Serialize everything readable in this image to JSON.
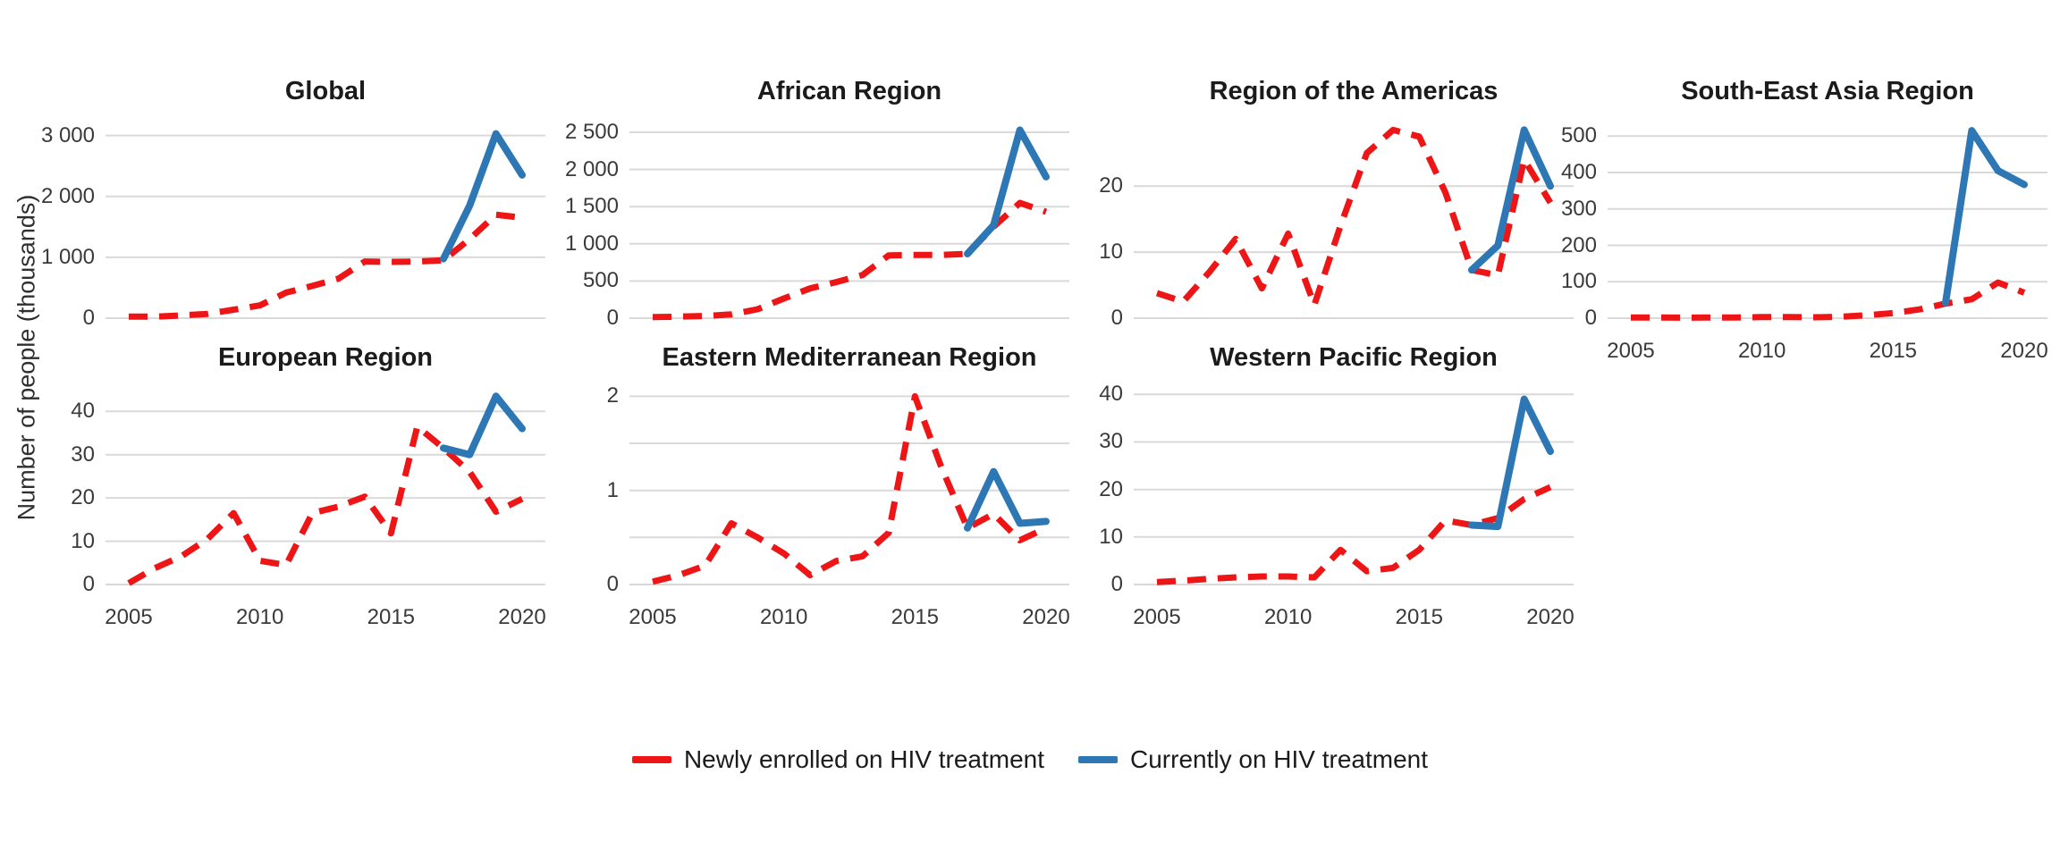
{
  "y_axis_label": "Number of people (thousands)",
  "colors": {
    "newly_enrolled": "#ed1515",
    "currently_on": "#2e77b5",
    "gridline": "#d9d9d9",
    "title_text": "#1b1b1b",
    "tick_text": "#3a3a3a",
    "background": "#ffffff"
  },
  "legend": {
    "items": [
      {
        "label": "Newly enrolled on HIV treatment",
        "series_key": "newly_enrolled",
        "line_style": "dashed"
      },
      {
        "label": "Currently on HIV treatment",
        "series_key": "currently_on",
        "line_style": "solid"
      }
    ]
  },
  "x_ticks": [
    {
      "value": 2005,
      "label": "2005"
    },
    {
      "value": 2010,
      "label": "2010"
    },
    {
      "value": 2015,
      "label": "2015"
    },
    {
      "value": 2020,
      "label": "2020"
    }
  ],
  "chart_data": [
    {
      "type": "line",
      "title": "Global",
      "slug": "global",
      "grid_position": {
        "row": 1,
        "col": 1
      },
      "show_x_axis": false,
      "x_domain": [
        2005,
        2020
      ],
      "y_max": 3200,
      "grid": "horizontal-only",
      "y_ticks": [
        {
          "value": 0,
          "label": "0"
        },
        {
          "value": 1000,
          "label": "1 000"
        },
        {
          "value": 2000,
          "label": "2 000"
        },
        {
          "value": 3000,
          "label": "3 000"
        }
      ],
      "series": {
        "newly_enrolled": {
          "name": "Newly enrolled on HIV treatment",
          "x_start": 2005,
          "values": [
            25,
            25,
            45,
            70,
            140,
            210,
            420,
            530,
            650,
            930,
            925,
            930,
            950,
            1300,
            1700,
            1650
          ]
        },
        "currently_on": {
          "name": "Currently on HIV treatment",
          "x_start": 2017,
          "values": [
            975,
            1850,
            3030,
            2350
          ]
        }
      }
    },
    {
      "type": "line",
      "title": "African Region",
      "slug": "african-region",
      "grid_position": {
        "row": 1,
        "col": 2
      },
      "show_x_axis": false,
      "x_domain": [
        2005,
        2020
      ],
      "y_max": 2620,
      "grid": "horizontal-only",
      "y_ticks": [
        {
          "value": 0,
          "label": "0"
        },
        {
          "value": 500,
          "label": "500"
        },
        {
          "value": 1000,
          "label": "1 000"
        },
        {
          "value": 1500,
          "label": "1 500"
        },
        {
          "value": 2000,
          "label": "2 000"
        },
        {
          "value": 2500,
          "label": "2 500"
        }
      ],
      "series": {
        "newly_enrolled": {
          "name": "Newly enrolled on HIV treatment",
          "x_start": 2005,
          "values": [
            15,
            20,
            30,
            50,
            120,
            265,
            400,
            485,
            580,
            845,
            850,
            850,
            865,
            1230,
            1550,
            1430
          ]
        },
        "currently_on": {
          "name": "Currently on HIV treatment",
          "x_start": 2017,
          "values": [
            865,
            1250,
            2530,
            1900
          ]
        }
      }
    },
    {
      "type": "line",
      "title": "Region of the Americas",
      "slug": "region-of-the-americas",
      "grid_position": {
        "row": 1,
        "col": 3
      },
      "show_x_axis": false,
      "x_domain": [
        2005,
        2020
      ],
      "y_max": 29.5,
      "grid": "horizontal-only",
      "y_ticks": [
        {
          "value": 0,
          "label": "0"
        },
        {
          "value": 10,
          "label": "10"
        },
        {
          "value": 20,
          "label": "20"
        }
      ],
      "series": {
        "newly_enrolled": {
          "name": "Newly enrolled on HIV treatment",
          "x_start": 2005,
          "values": [
            3.8,
            2.5,
            7,
            12,
            4.5,
            12.8,
            2,
            14,
            25,
            28.5,
            27.5,
            19,
            7.3,
            6.5,
            24,
            17.5
          ]
        },
        "currently_on": {
          "name": "Currently on HIV treatment",
          "x_start": 2017,
          "values": [
            7.3,
            11,
            28.5,
            20
          ]
        }
      }
    },
    {
      "type": "line",
      "title": "South-East Asia Region",
      "slug": "south-east-asia-region",
      "grid_position": {
        "row": 1,
        "col": 4
      },
      "show_x_axis": true,
      "x_domain": [
        2005,
        2020
      ],
      "y_max": 535,
      "grid": "horizontal-only",
      "y_ticks": [
        {
          "value": 0,
          "label": "0"
        },
        {
          "value": 100,
          "label": "100"
        },
        {
          "value": 200,
          "label": "200"
        },
        {
          "value": 300,
          "label": "300"
        },
        {
          "value": 400,
          "label": "400"
        },
        {
          "value": 500,
          "label": "500"
        }
      ],
      "series": {
        "newly_enrolled": {
          "name": "Newly enrolled on HIV treatment",
          "x_start": 2005,
          "values": [
            2,
            2,
            1.5,
            2,
            2,
            3,
            3,
            2.5,
            4,
            8,
            14,
            24,
            40,
            52,
            98,
            70
          ]
        },
        "currently_on": {
          "name": "Currently on HIV treatment",
          "x_start": 2017,
          "values": [
            42,
            515,
            405,
            367
          ]
        }
      }
    },
    {
      "type": "line",
      "title": "European Region",
      "slug": "european-region",
      "grid_position": {
        "row": 2,
        "col": 1
      },
      "show_x_axis": true,
      "x_domain": [
        2005,
        2020
      ],
      "y_max": 45,
      "grid": "horizontal-only",
      "y_ticks": [
        {
          "value": 0,
          "label": "0"
        },
        {
          "value": 10,
          "label": "10"
        },
        {
          "value": 20,
          "label": "20"
        },
        {
          "value": 30,
          "label": "30"
        },
        {
          "value": 40,
          "label": "40"
        }
      ],
      "series": {
        "newly_enrolled": {
          "name": "Newly enrolled on HIV treatment",
          "x_start": 2005,
          "values": [
            0.3,
            3.8,
            6.5,
            10.5,
            16.5,
            5.5,
            4.5,
            16.5,
            18,
            20.3,
            11.8,
            36.5,
            31.5,
            26,
            16.8,
            19.8
          ]
        },
        "currently_on": {
          "name": "Currently on HIV treatment",
          "x_start": 2017,
          "values": [
            31.5,
            30,
            43.5,
            36
          ]
        }
      }
    },
    {
      "type": "line",
      "title": "Eastern Mediterranean Region",
      "slug": "eastern-mediterranean-region",
      "grid_position": {
        "row": 2,
        "col": 2
      },
      "show_x_axis": true,
      "x_domain": [
        2005,
        2020
      ],
      "y_max": 2.07,
      "grid": "horizontal-only",
      "y_ticks": [
        {
          "value": 0,
          "label": "0"
        },
        {
          "value": 0.5,
          "label": ""
        },
        {
          "value": 1,
          "label": "1"
        },
        {
          "value": 1.5,
          "label": ""
        },
        {
          "value": 2,
          "label": "2"
        }
      ],
      "series": {
        "newly_enrolled": {
          "name": "Newly enrolled on HIV treatment",
          "x_start": 2005,
          "values": [
            0.03,
            0.1,
            0.2,
            0.65,
            0.5,
            0.33,
            0.1,
            0.25,
            0.3,
            0.55,
            2.0,
            1.25,
            0.6,
            0.75,
            0.47,
            0.6
          ]
        },
        "currently_on": {
          "name": "Currently on HIV treatment",
          "x_start": 2017,
          "values": [
            0.6,
            1.2,
            0.65,
            0.67
          ]
        }
      }
    },
    {
      "type": "line",
      "title": "Western Pacific Region",
      "slug": "western-pacific-region",
      "grid_position": {
        "row": 2,
        "col": 3
      },
      "show_x_axis": true,
      "x_domain": [
        2005,
        2020
      ],
      "y_max": 41,
      "grid": "horizontal-only",
      "y_ticks": [
        {
          "value": 0,
          "label": "0"
        },
        {
          "value": 10,
          "label": "10"
        },
        {
          "value": 20,
          "label": "20"
        },
        {
          "value": 30,
          "label": "30"
        },
        {
          "value": 40,
          "label": "40"
        }
      ],
      "series": {
        "newly_enrolled": {
          "name": "Newly enrolled on HIV treatment",
          "x_start": 2005,
          "values": [
            0.5,
            0.8,
            1.2,
            1.5,
            1.7,
            1.7,
            1.5,
            7.3,
            2.8,
            3.5,
            7.3,
            13.5,
            12.5,
            14,
            18,
            20.5
          ]
        },
        "currently_on": {
          "name": "Currently on HIV treatment",
          "x_start": 2017,
          "values": [
            12.5,
            12.2,
            39,
            28
          ]
        }
      }
    }
  ]
}
